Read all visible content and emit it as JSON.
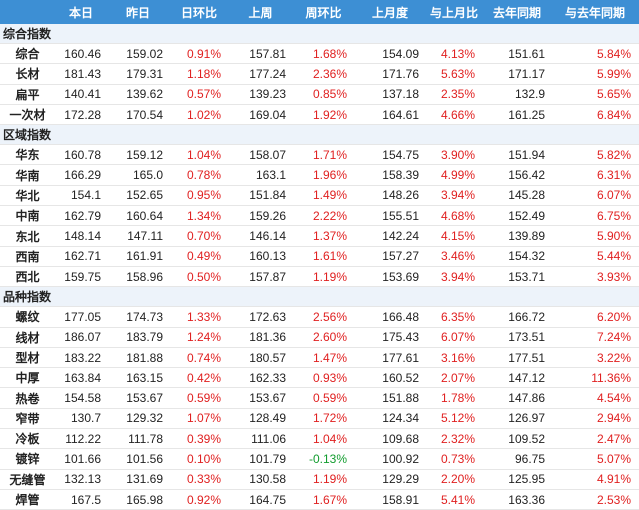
{
  "columns": [
    "",
    "本日",
    "昨日",
    "日环比",
    "上周",
    "周环比",
    "上月度",
    "与上月比",
    "去年同期",
    "与去年同期"
  ],
  "sections": [
    {
      "title": "综合指数",
      "rows": [
        {
          "name": "综合",
          "values": [
            "160.46",
            "159.02",
            "0.91%",
            "157.81",
            "1.68%",
            "154.09",
            "4.13%",
            "151.61",
            "5.84%"
          ]
        },
        {
          "name": "长材",
          "values": [
            "181.43",
            "179.31",
            "1.18%",
            "177.24",
            "2.36%",
            "171.76",
            "5.63%",
            "171.17",
            "5.99%"
          ]
        },
        {
          "name": "扁平",
          "values": [
            "140.41",
            "139.62",
            "0.57%",
            "139.23",
            "0.85%",
            "137.18",
            "2.35%",
            "132.9",
            "5.65%"
          ]
        },
        {
          "name": "一次材",
          "values": [
            "172.28",
            "170.54",
            "1.02%",
            "169.04",
            "1.92%",
            "164.61",
            "4.66%",
            "161.25",
            "6.84%"
          ]
        }
      ]
    },
    {
      "title": "区域指数",
      "rows": [
        {
          "name": "华东",
          "values": [
            "160.78",
            "159.12",
            "1.04%",
            "158.07",
            "1.71%",
            "154.75",
            "3.90%",
            "151.94",
            "5.82%"
          ]
        },
        {
          "name": "华南",
          "values": [
            "166.29",
            "165.0",
            "0.78%",
            "163.1",
            "1.96%",
            "158.39",
            "4.99%",
            "156.42",
            "6.31%"
          ]
        },
        {
          "name": "华北",
          "values": [
            "154.1",
            "152.65",
            "0.95%",
            "151.84",
            "1.49%",
            "148.26",
            "3.94%",
            "145.28",
            "6.07%"
          ]
        },
        {
          "name": "中南",
          "values": [
            "162.79",
            "160.64",
            "1.34%",
            "159.26",
            "2.22%",
            "155.51",
            "4.68%",
            "152.49",
            "6.75%"
          ]
        },
        {
          "name": "东北",
          "values": [
            "148.14",
            "147.11",
            "0.70%",
            "146.14",
            "1.37%",
            "142.24",
            "4.15%",
            "139.89",
            "5.90%"
          ]
        },
        {
          "name": "西南",
          "values": [
            "162.71",
            "161.91",
            "0.49%",
            "160.13",
            "1.61%",
            "157.27",
            "3.46%",
            "154.32",
            "5.44%"
          ]
        },
        {
          "name": "西北",
          "values": [
            "159.75",
            "158.96",
            "0.50%",
            "157.87",
            "1.19%",
            "153.69",
            "3.94%",
            "153.71",
            "3.93%"
          ]
        }
      ]
    },
    {
      "title": "品种指数",
      "rows": [
        {
          "name": "螺纹",
          "values": [
            "177.05",
            "174.73",
            "1.33%",
            "172.63",
            "2.56%",
            "166.48",
            "6.35%",
            "166.72",
            "6.20%"
          ]
        },
        {
          "name": "线材",
          "values": [
            "186.07",
            "183.79",
            "1.24%",
            "181.36",
            "2.60%",
            "175.43",
            "6.07%",
            "173.51",
            "7.24%"
          ]
        },
        {
          "name": "型材",
          "values": [
            "183.22",
            "181.88",
            "0.74%",
            "180.57",
            "1.47%",
            "177.61",
            "3.16%",
            "177.51",
            "3.22%"
          ]
        },
        {
          "name": "中厚",
          "values": [
            "163.84",
            "163.15",
            "0.42%",
            "162.33",
            "0.93%",
            "160.52",
            "2.07%",
            "147.12",
            "11.36%"
          ]
        },
        {
          "name": "热卷",
          "values": [
            "154.58",
            "153.67",
            "0.59%",
            "153.67",
            "0.59%",
            "151.88",
            "1.78%",
            "147.86",
            "4.54%"
          ]
        },
        {
          "name": "窄带",
          "values": [
            "130.7",
            "129.32",
            "1.07%",
            "128.49",
            "1.72%",
            "124.34",
            "5.12%",
            "126.97",
            "2.94%"
          ]
        },
        {
          "name": "冷板",
          "values": [
            "112.22",
            "111.78",
            "0.39%",
            "111.06",
            "1.04%",
            "109.68",
            "2.32%",
            "109.52",
            "2.47%"
          ]
        },
        {
          "name": "镀锌",
          "values": [
            "101.66",
            "101.56",
            "0.10%",
            "101.79",
            "-0.13%",
            "100.92",
            "0.73%",
            "96.75",
            "5.07%"
          ]
        },
        {
          "name": "无缝管",
          "values": [
            "132.13",
            "131.69",
            "0.33%",
            "130.58",
            "1.19%",
            "129.29",
            "2.20%",
            "125.95",
            "4.91%"
          ]
        },
        {
          "name": "焊管",
          "values": [
            "167.5",
            "165.98",
            "0.92%",
            "164.75",
            "1.67%",
            "158.91",
            "5.41%",
            "163.36",
            "2.53%"
          ]
        }
      ]
    }
  ],
  "colors": {
    "header_bg": "#3d8fd4",
    "section_bg": "#edf3fa",
    "up": "#e02020",
    "down": "#119c2e"
  }
}
